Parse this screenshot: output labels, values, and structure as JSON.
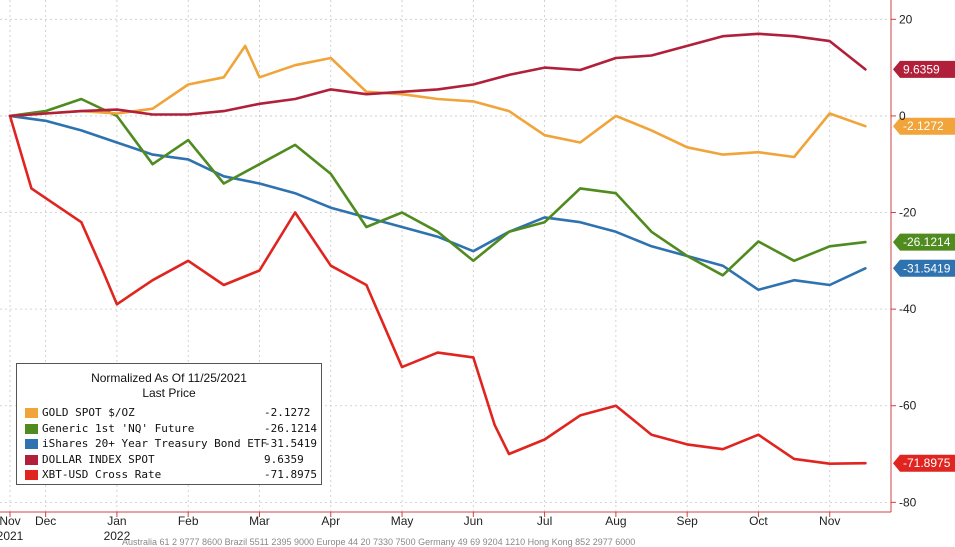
{
  "chart_data": {
    "type": "line",
    "title": "",
    "legend_title": "Normalized As Of 11/25/2021",
    "legend_subtitle": "Last Price",
    "legend_position": "bottom-left",
    "y_axis_side": "right",
    "ylim": [
      -82,
      24
    ],
    "y_ticks": [
      20,
      0,
      -20,
      -40,
      -60,
      -80
    ],
    "y_tick_labels": [
      "20",
      "0",
      "-20",
      "-40",
      "-60",
      "-80"
    ],
    "x_range": [
      0,
      12.5
    ],
    "x_ticks": [
      {
        "pos": 0.0,
        "label": "Nov",
        "sub": "2021"
      },
      {
        "pos": 0.5,
        "label": "Dec",
        "sub": ""
      },
      {
        "pos": 1.5,
        "label": "Jan",
        "sub": "2022"
      },
      {
        "pos": 2.5,
        "label": "Feb",
        "sub": ""
      },
      {
        "pos": 3.5,
        "label": "Mar",
        "sub": ""
      },
      {
        "pos": 4.5,
        "label": "Apr",
        "sub": ""
      },
      {
        "pos": 5.5,
        "label": "May",
        "sub": ""
      },
      {
        "pos": 6.5,
        "label": "Jun",
        "sub": ""
      },
      {
        "pos": 7.5,
        "label": "Jul",
        "sub": ""
      },
      {
        "pos": 8.5,
        "label": "Aug",
        "sub": ""
      },
      {
        "pos": 9.5,
        "label": "Sep",
        "sub": ""
      },
      {
        "pos": 10.5,
        "label": "Oct",
        "sub": ""
      },
      {
        "pos": 11.5,
        "label": "Nov",
        "sub": ""
      }
    ],
    "series": [
      {
        "name": "DOLLAR INDEX SPOT",
        "display_value": "9.6359",
        "color": "#b0203a",
        "x": [
          0,
          0.5,
          1.0,
          1.5,
          2.0,
          2.5,
          3.0,
          3.5,
          4.0,
          4.5,
          5.0,
          5.5,
          6.0,
          6.5,
          7.0,
          7.5,
          8.0,
          8.5,
          9.0,
          9.5,
          10.0,
          10.5,
          11.0,
          11.5,
          12.0
        ],
        "values": [
          0,
          0.5,
          1.0,
          1.3,
          0.3,
          0.3,
          1.0,
          2.5,
          3.5,
          5.5,
          4.5,
          5.0,
          5.5,
          6.5,
          8.5,
          10.0,
          9.5,
          12.0,
          12.5,
          14.5,
          16.5,
          17.0,
          16.5,
          15.5,
          9.6359
        ]
      },
      {
        "name": "GOLD SPOT $/OZ",
        "display_value": "-2.1272",
        "color": "#f0a43a",
        "x": [
          0,
          0.5,
          1.0,
          1.5,
          2.0,
          2.5,
          3.0,
          3.3,
          3.5,
          4.0,
          4.5,
          5.0,
          5.5,
          6.0,
          6.5,
          7.0,
          7.5,
          8.0,
          8.5,
          9.0,
          9.5,
          10.0,
          10.5,
          11.0,
          11.5,
          12.0
        ],
        "values": [
          0,
          0.5,
          1.0,
          0.5,
          1.5,
          6.5,
          8.0,
          14.5,
          8.0,
          10.5,
          12.0,
          5.0,
          4.5,
          3.5,
          3.0,
          1.0,
          -4.0,
          -5.5,
          0,
          -3.0,
          -6.5,
          -8.0,
          -7.5,
          -8.5,
          0.5,
          -2.1272
        ]
      },
      {
        "name": "Generic 1st 'NQ' Future",
        "display_value": "-26.1214",
        "color": "#4f8b1f",
        "x": [
          0,
          0.5,
          1.0,
          1.5,
          2.0,
          2.5,
          3.0,
          3.5,
          4.0,
          4.5,
          5.0,
          5.5,
          6.0,
          6.5,
          7.0,
          7.5,
          8.0,
          8.5,
          9.0,
          9.5,
          10.0,
          10.5,
          11.0,
          11.5,
          12.0
        ],
        "values": [
          0,
          1.0,
          3.5,
          0,
          -10.0,
          -5.0,
          -14.0,
          -10.0,
          -6.0,
          -12.0,
          -23.0,
          -20.0,
          -24.0,
          -30.0,
          -24.0,
          -22.0,
          -15.0,
          -16.0,
          -24.0,
          -29.0,
          -33.0,
          -26.0,
          -30.0,
          -27.0,
          -26.1214
        ]
      },
      {
        "name": "iShares 20+ Year Treasury Bond ETF",
        "display_value": "-31.5419",
        "color": "#2f72b0",
        "x": [
          0,
          0.5,
          1.0,
          1.5,
          2.0,
          2.5,
          3.0,
          3.5,
          4.0,
          4.5,
          5.0,
          5.5,
          6.0,
          6.5,
          7.0,
          7.5,
          8.0,
          8.5,
          9.0,
          9.5,
          10.0,
          10.5,
          11.0,
          11.5,
          12.0
        ],
        "values": [
          0,
          -1.0,
          -3.0,
          -5.5,
          -8.0,
          -9.0,
          -12.5,
          -14.0,
          -16.0,
          -19.0,
          -21.0,
          -23.0,
          -25.0,
          -28.0,
          -24.0,
          -21.0,
          -22.0,
          -24.0,
          -27.0,
          -29.0,
          -31.0,
          -36.0,
          -34.0,
          -35.0,
          -31.5419
        ]
      },
      {
        "name": "XBT-USD Cross Rate",
        "display_value": "-71.8975",
        "color": "#e02420",
        "x": [
          0,
          0.3,
          0.6,
          1.0,
          1.3,
          1.5,
          2.0,
          2.5,
          3.0,
          3.5,
          4.0,
          4.5,
          5.0,
          5.5,
          6.0,
          6.5,
          6.8,
          7.0,
          7.5,
          8.0,
          8.5,
          9.0,
          9.5,
          10.0,
          10.5,
          11.0,
          11.5,
          12.0
        ],
        "values": [
          0,
          -15.0,
          -18.0,
          -22.0,
          -32.0,
          -39.0,
          -34.0,
          -30.0,
          -35.0,
          -32.0,
          -20.0,
          -31.0,
          -35.0,
          -52.0,
          -49.0,
          -50.0,
          -64.0,
          -70.0,
          -67.0,
          -62.0,
          -60.0,
          -66.0,
          -68.0,
          -69.0,
          -66.0,
          -71.0,
          -72.0,
          -71.8975
        ]
      }
    ],
    "legend_order": [
      "GOLD SPOT $/OZ",
      "Generic 1st 'NQ' Future",
      "iShares 20+ Year Treasury Bond ETF",
      "DOLLAR INDEX SPOT",
      "XBT-USD Cross Rate"
    ],
    "footnote": "Australia 61 2 9777 8600 Brazil 5511 2395 9000 Europe 44 20 7330 7500 Germany 49 69 9204 1210 Hong Kong 852 2977 6000"
  }
}
